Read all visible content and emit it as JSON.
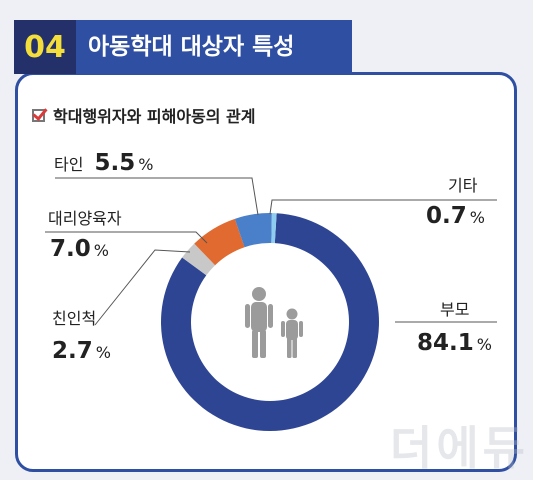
{
  "header": {
    "number": "04",
    "title": "아동학대 대상자 특성"
  },
  "section": {
    "subtitle": "학대행위자와 피해아동의 관계",
    "check_icon": "checkbox-checked-icon"
  },
  "labels": {
    "tain": {
      "name": "타인",
      "value": "5.5",
      "unit": "%"
    },
    "daeri": {
      "name": "대리양육자",
      "value": "7.0",
      "unit": "%"
    },
    "chinin": {
      "name": "친인척",
      "value": "2.7",
      "unit": "%"
    },
    "gita": {
      "name": "기타",
      "value": "0.7",
      "unit": "%"
    },
    "bumo": {
      "name": "부모",
      "value": "84.1",
      "unit": "%"
    }
  },
  "center_icon": "parent-and-child-icon",
  "colors": {
    "parents": "#2e4593",
    "extended": "#c8c8c8",
    "surrogate": "#e06a30",
    "stranger": "#4a7fc9",
    "other": "#8fcdf0",
    "header": "#2f4fa3",
    "header_number_bg": "#24306a",
    "header_number": "#f4de3b"
  },
  "chart_data": {
    "type": "pie",
    "title": "학대행위자와 피해아동의 관계",
    "unit": "%",
    "categories": [
      "부모",
      "친인척",
      "대리양육자",
      "타인",
      "기타"
    ],
    "values": [
      84.1,
      2.7,
      7.0,
      5.5,
      0.7
    ]
  },
  "watermark": "더에듀"
}
